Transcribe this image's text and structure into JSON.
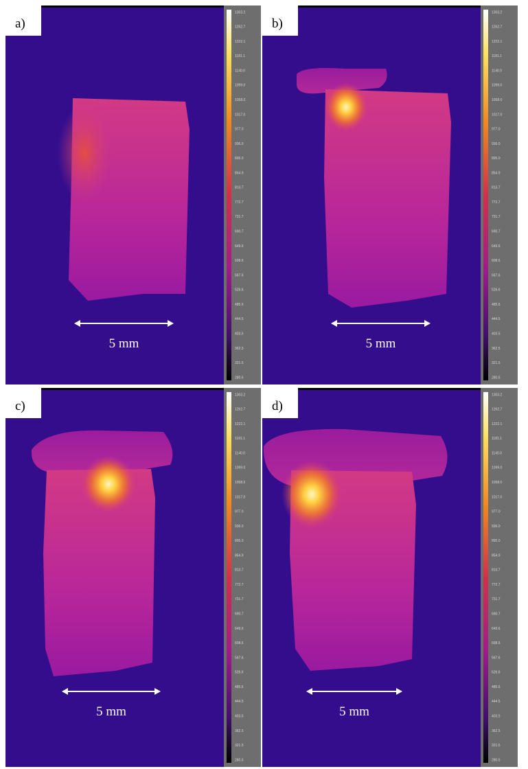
{
  "panels": [
    {
      "label": "a)",
      "scale": "5 mm"
    },
    {
      "label": "b)",
      "scale": "5 mm"
    },
    {
      "label": "c)",
      "scale": "5 mm"
    },
    {
      "label": "d)",
      "scale": "5 mm"
    }
  ],
  "colorbar_labels": [
    "1303.2",
    "1262.7",
    "1222.1",
    "1181.1",
    "1140.0",
    "1099.0",
    "1058.0",
    "1017.0",
    "977.0",
    "936.0",
    "895.0",
    "854.9",
    "813.7",
    "772.7",
    "731.7",
    "690.7",
    "649.6",
    "608.6",
    "567.6",
    "526.6",
    "485.6",
    "444.5",
    "403.5",
    "362.5",
    "321.5",
    "280.5"
  ]
}
